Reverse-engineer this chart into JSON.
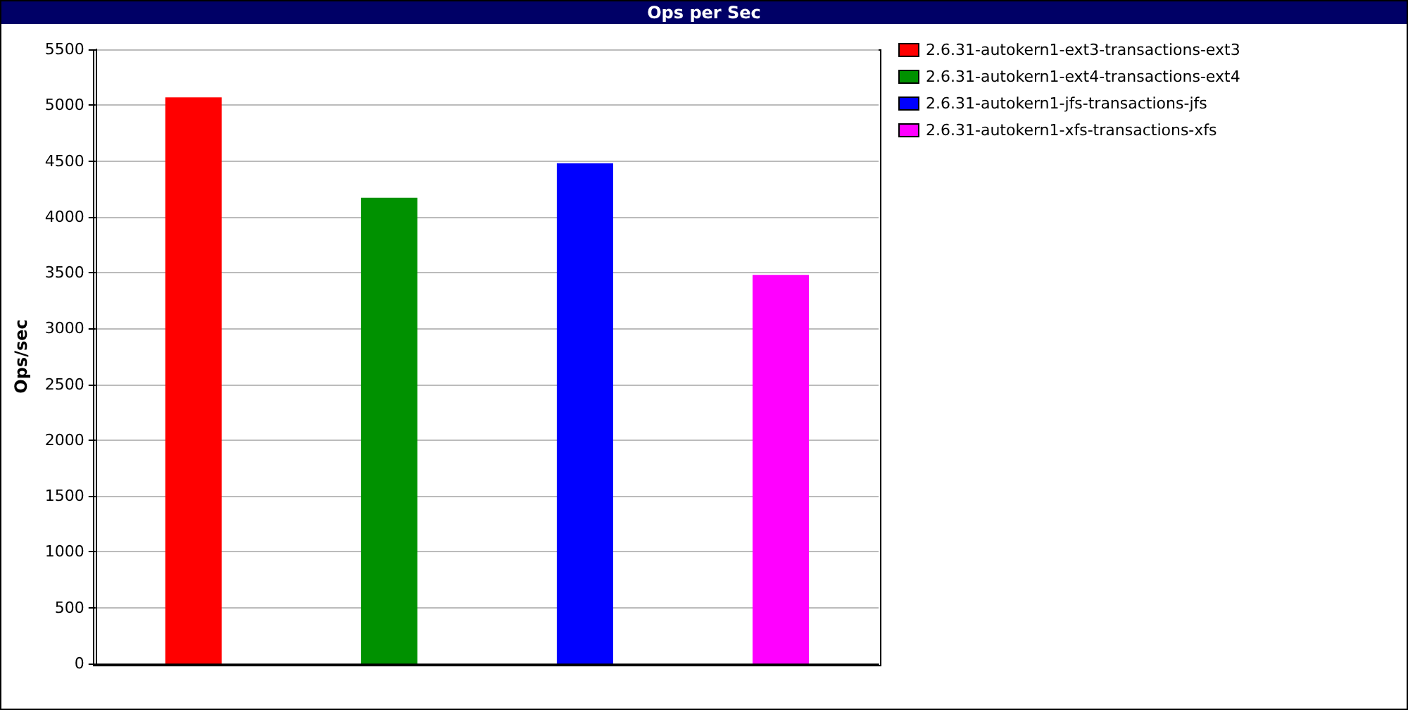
{
  "chart_data": {
    "type": "bar",
    "title": "Ops per Sec",
    "ylabel": "Ops/sec",
    "categories": [
      null,
      null,
      null,
      null
    ],
    "series": [
      {
        "name": "2.6.31-autokern1-ext3-transactions-ext3",
        "color": "#ff0000",
        "values": [
          5070,
          null,
          null,
          null
        ]
      },
      {
        "name": "2.6.31-autokern1-ext4-transactions-ext4",
        "color": "#009100",
        "values": [
          null,
          4170,
          null,
          null
        ]
      },
      {
        "name": "2.6.31-autokern1-jfs-transactions-jfs",
        "color": "#0000ff",
        "values": [
          null,
          null,
          4480,
          null
        ]
      },
      {
        "name": "2.6.31-autokern1-xfs-transactions-xfs",
        "color": "#ff00ff",
        "values": [
          null,
          null,
          null,
          3480
        ]
      }
    ],
    "ylim": [
      0,
      5500
    ],
    "yticks": [
      0,
      500,
      1000,
      1500,
      2000,
      2500,
      3000,
      3500,
      4000,
      4500,
      5000,
      5500
    ],
    "grid": "y",
    "legend": "top right"
  }
}
